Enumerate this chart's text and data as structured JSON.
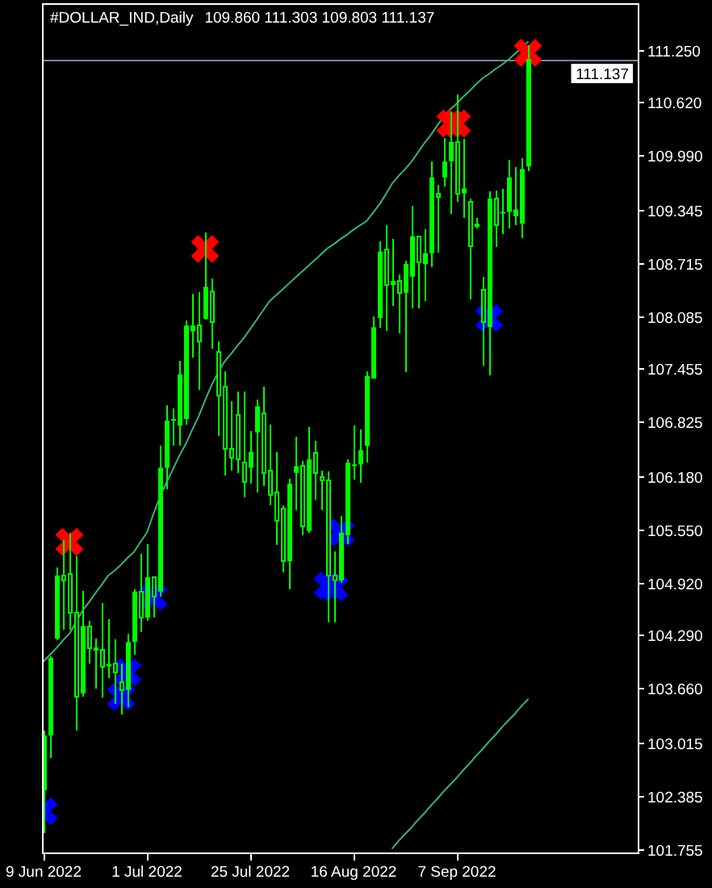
{
  "chart_data": {
    "type": "candlestick",
    "title": "#DOLLAR_IND,Daily",
    "subtitle": "109.860 111.303 109.803 111.137",
    "color": "#00ff00",
    "categories": [
      "9 Jun 2022",
      null,
      null,
      null,
      null,
      null,
      null,
      null,
      null,
      null,
      null,
      null,
      null,
      null,
      null,
      null,
      "1 Jul 2022",
      null,
      null,
      null,
      null,
      null,
      null,
      null,
      null,
      null,
      null,
      null,
      null,
      null,
      null,
      null,
      "25 Jul 2022",
      null,
      null,
      null,
      null,
      null,
      null,
      null,
      null,
      null,
      null,
      null,
      null,
      null,
      null,
      null,
      "16 Aug 2022",
      null,
      null,
      null,
      null,
      null,
      null,
      null,
      null,
      null,
      null,
      null,
      null,
      null,
      null,
      null,
      "7 Sep 2022",
      null,
      null,
      null,
      null,
      null,
      null,
      null,
      null,
      null,
      null,
      null
    ],
    "ohlc": [
      [
        102.45,
        103.16,
        101.94,
        103.1
      ],
      [
        103.1,
        104.04,
        102.83,
        104.02
      ],
      [
        104.25,
        105.1,
        104.23,
        105.0
      ],
      [
        105.0,
        105.42,
        104.36,
        104.94
      ],
      [
        105.02,
        105.51,
        104.36,
        104.56
      ],
      [
        104.56,
        105.23,
        103.16,
        103.56
      ],
      [
        103.6,
        104.82,
        103.56,
        104.4
      ],
      [
        104.4,
        104.46,
        103.95,
        104.14
      ],
      [
        104.14,
        104.25,
        103.66,
        104.12
      ],
      [
        104.12,
        104.67,
        103.55,
        103.92
      ],
      [
        103.92,
        104.48,
        103.78,
        103.95
      ],
      [
        103.95,
        104.24,
        103.47,
        103.85
      ],
      [
        103.73,
        103.95,
        103.35,
        103.64
      ],
      [
        103.64,
        104.31,
        103.44,
        104.21
      ],
      [
        104.21,
        104.84,
        104.06,
        104.81
      ],
      [
        104.81,
        105.26,
        104.33,
        104.5
      ],
      [
        104.5,
        105.37,
        104.46,
        104.98
      ],
      [
        104.98,
        104.99,
        104.5,
        104.75
      ],
      [
        104.81,
        106.54,
        104.75,
        106.28
      ],
      [
        106.28,
        107.02,
        106.03,
        106.84
      ],
      [
        106.84,
        106.98,
        106.54,
        106.86
      ],
      [
        106.78,
        107.55,
        106.54,
        107.39
      ],
      [
        106.86,
        108.03,
        106.79,
        107.97
      ],
      [
        107.9,
        108.35,
        107.59,
        107.97
      ],
      [
        107.97,
        108.37,
        107.21,
        107.78
      ],
      [
        108.05,
        109.08,
        108.04,
        108.43
      ],
      [
        108.38,
        108.53,
        107.69,
        108.01
      ],
      [
        107.66,
        107.78,
        106.66,
        107.14
      ],
      [
        107.24,
        107.43,
        106.19,
        106.51
      ],
      [
        106.51,
        107.07,
        106.25,
        106.4
      ],
      [
        106.91,
        107.19,
        106.22,
        106.38
      ],
      [
        106.34,
        107.19,
        105.93,
        106.11
      ],
      [
        106.28,
        106.72,
        106.09,
        106.47
      ],
      [
        106.7,
        107.09,
        105.99,
        107.01
      ],
      [
        106.93,
        107.24,
        106.06,
        106.22
      ],
      [
        106.25,
        106.79,
        105.83,
        105.96
      ],
      [
        105.99,
        106.47,
        105.36,
        105.65
      ],
      [
        105.8,
        105.83,
        105.04,
        105.17
      ],
      [
        105.17,
        106.15,
        104.84,
        106.09
      ],
      [
        106.22,
        106.65,
        105.78,
        106.3
      ],
      [
        106.3,
        106.36,
        105.48,
        105.58
      ],
      [
        105.53,
        106.76,
        105.51,
        106.38
      ],
      [
        106.46,
        106.6,
        105.9,
        106.22
      ],
      [
        106.17,
        106.25,
        105.78,
        106.13
      ],
      [
        106.13,
        106.24,
        104.44,
        105.0
      ],
      [
        105.0,
        105.29,
        104.44,
        104.94
      ],
      [
        104.94,
        105.71,
        104.91,
        105.51
      ],
      [
        105.48,
        106.38,
        105.37,
        106.34
      ],
      [
        106.32,
        106.78,
        106.14,
        106.32
      ],
      [
        106.32,
        106.74,
        106.1,
        106.49
      ],
      [
        106.54,
        107.43,
        106.34,
        107.37
      ],
      [
        107.34,
        108.08,
        107.34,
        107.95
      ],
      [
        108.06,
        108.97,
        107.94,
        108.85
      ],
      [
        108.87,
        109.16,
        107.91,
        108.45
      ],
      [
        108.45,
        109.0,
        108.2,
        108.5
      ],
      [
        108.5,
        108.58,
        107.88,
        108.36
      ],
      [
        108.36,
        108.74,
        107.42,
        108.7
      ],
      [
        108.55,
        109.39,
        108.17,
        109.03
      ],
      [
        109.03,
        109.03,
        108.17,
        108.72
      ],
      [
        108.7,
        109.11,
        108.26,
        108.83
      ],
      [
        108.83,
        109.92,
        108.66,
        109.73
      ],
      [
        109.54,
        109.64,
        108.84,
        109.5
      ],
      [
        109.73,
        110.2,
        109.62,
        109.92
      ],
      [
        109.92,
        110.5,
        109.3,
        110.15
      ],
      [
        110.15,
        110.72,
        109.44,
        109.54
      ],
      [
        109.54,
        110.19,
        109.25,
        109.6
      ],
      [
        109.44,
        109.48,
        108.28,
        108.91
      ],
      [
        109.14,
        109.25,
        109.12,
        109.18
      ],
      [
        108.39,
        108.55,
        107.49,
        108.01
      ],
      [
        107.95,
        109.56,
        107.38,
        109.48
      ],
      [
        109.48,
        109.57,
        108.9,
        109.16
      ],
      [
        109.32,
        109.59,
        109.06,
        109.32
      ],
      [
        109.32,
        109.94,
        109.12,
        109.73
      ],
      [
        109.27,
        109.85,
        109.16,
        109.35
      ],
      [
        109.18,
        109.96,
        109.01,
        109.83
      ],
      [
        109.86,
        111.303,
        109.803,
        111.137
      ]
    ],
    "series": [
      {
        "type": "line",
        "color": "#3cb371",
        "values": [
          103.98,
          104.06,
          104.14,
          104.23,
          104.31,
          104.44,
          104.58,
          104.68,
          104.79,
          104.89,
          105.0,
          105.06,
          105.13,
          105.21,
          105.28,
          105.4,
          105.51,
          105.73,
          105.93,
          106.1,
          106.26,
          106.42,
          106.56,
          106.73,
          106.89,
          107.08,
          107.26,
          107.41,
          107.54,
          107.63,
          107.73,
          107.82,
          107.93,
          108.04,
          108.15,
          108.26,
          108.33,
          108.4,
          108.47,
          108.54,
          108.61,
          108.68,
          108.75,
          108.82,
          108.89,
          108.94,
          109.0,
          109.05,
          109.11,
          109.16,
          109.21,
          109.31,
          109.41,
          109.53,
          109.66,
          109.75,
          109.83,
          109.92,
          110.03,
          110.14,
          110.24,
          110.35,
          110.46,
          110.54,
          110.61,
          110.69,
          110.76,
          110.84,
          110.91,
          110.96,
          111.02,
          111.07,
          111.13,
          111.2,
          111.27,
          111.34
        ]
      },
      {
        "type": "line",
        "color": "#3cb371",
        "values": [
          null,
          null,
          null,
          null,
          null,
          null,
          null,
          null,
          null,
          null,
          null,
          null,
          null,
          null,
          null,
          null,
          null,
          null,
          null,
          null,
          null,
          null,
          null,
          null,
          null,
          null,
          null,
          null,
          null,
          null,
          null,
          null,
          null,
          null,
          null,
          null,
          null,
          null,
          null,
          null,
          null,
          null,
          null,
          null,
          null,
          null,
          null,
          null,
          null,
          null,
          null,
          null,
          null,
          null,
          101.76,
          101.85,
          101.93,
          102.01,
          102.1,
          102.18,
          102.27,
          102.35,
          102.44,
          102.52,
          102.6,
          102.69,
          102.77,
          102.86,
          102.94,
          103.03,
          103.11,
          103.2,
          103.28,
          103.36,
          103.45,
          103.53
        ]
      },
      {
        "type": "scatter",
        "color": "#ff0000",
        "marker": "cross",
        "values": [
          null,
          null,
          null,
          null,
          105.4,
          null,
          null,
          null,
          null,
          null,
          null,
          null,
          null,
          null,
          null,
          null,
          null,
          null,
          null,
          null,
          null,
          null,
          null,
          null,
          null,
          108.88,
          null,
          null,
          null,
          null,
          null,
          null,
          null,
          null,
          null,
          null,
          null,
          null,
          null,
          null,
          null,
          null,
          null,
          null,
          null,
          null,
          null,
          null,
          null,
          null,
          null,
          null,
          null,
          null,
          null,
          null,
          null,
          null,
          null,
          null,
          null,
          null,
          null,
          110.37,
          110.37,
          null,
          null,
          null,
          null,
          null,
          null,
          null,
          null,
          null,
          null,
          111.21
        ]
      },
      {
        "type": "scatter",
        "color": "#0000ff",
        "marker": "cross",
        "values": [
          102.2,
          null,
          null,
          null,
          null,
          null,
          null,
          null,
          null,
          null,
          null,
          null,
          103.56,
          103.85,
          null,
          null,
          null,
          104.75,
          null,
          null,
          null,
          null,
          null,
          null,
          null,
          null,
          null,
          null,
          null,
          null,
          null,
          null,
          null,
          null,
          null,
          null,
          null,
          null,
          null,
          null,
          null,
          null,
          null,
          null,
          104.88,
          104.86,
          105.51,
          null,
          null,
          null,
          null,
          null,
          null,
          null,
          null,
          null,
          null,
          null,
          null,
          null,
          null,
          null,
          null,
          null,
          null,
          null,
          null,
          null,
          null,
          108.06,
          null,
          null,
          null,
          null,
          null,
          null
        ]
      }
    ],
    "ylim": [
      101.71,
      111.78
    ],
    "yticks": [
      101.755,
      102.385,
      103.015,
      {
        "value": 103.66,
        "label": "103.660"
      },
      {
        "value": 104.29,
        "label": "104.290"
      },
      {
        "value": 104.92,
        "label": "104.920"
      },
      {
        "value": 105.55,
        "label": "105.550"
      },
      {
        "value": 106.18,
        "label": "106.180"
      },
      106.825,
      107.455,
      108.085,
      108.715,
      109.345,
      {
        "value": 109.99,
        "label": "109.990"
      },
      {
        "value": 110.62,
        "label": "110.620"
      },
      {
        "value": 111.25,
        "label": "111.250"
      }
    ],
    "ref_lines": [
      {
        "axis": "y",
        "value": 111.137,
        "label": "111.137",
        "color": "#778899"
      }
    ]
  }
}
